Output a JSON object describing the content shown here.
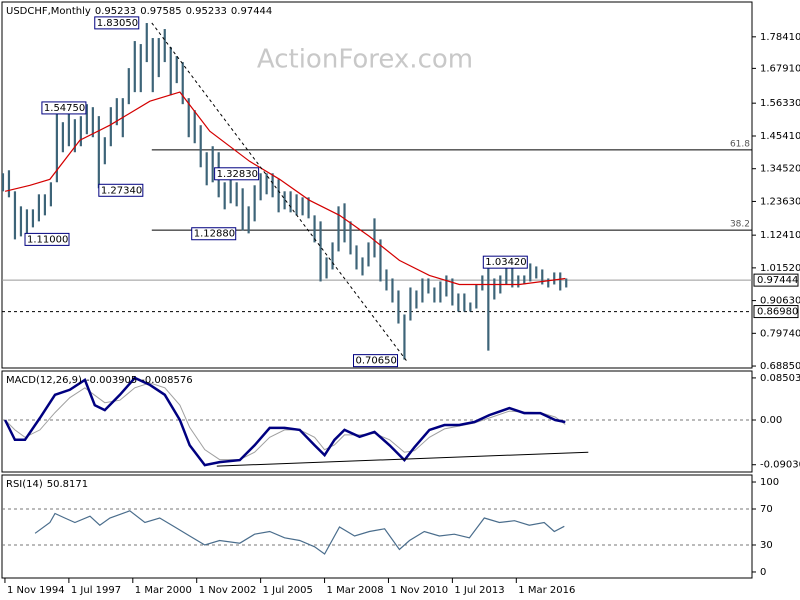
{
  "chart_data": [
    {
      "type": "ohlc",
      "title": "USDCHF,Monthly",
      "header_values": [
        0.95233,
        0.97585,
        0.95233,
        0.97444
      ],
      "watermark": "ActionForex.com",
      "xlim": [
        1994.71,
        2026.0
      ],
      "ylim": [
        0.682,
        1.9
      ],
      "yticks": [
        {
          "value": 1.7841,
          "label": "1.78410"
        },
        {
          "value": 1.6791,
          "label": "1.67910"
        },
        {
          "value": 1.5633,
          "label": "1.56330"
        },
        {
          "value": 1.4541,
          "label": "1.45410"
        },
        {
          "value": 1.3452,
          "label": "1.34520"
        },
        {
          "value": 1.2363,
          "label": "1.23630"
        },
        {
          "value": 1.1241,
          "label": "1.12410"
        },
        {
          "value": 1.0152,
          "label": "1.01520"
        },
        {
          "value": 0.9063,
          "label": "0.90630"
        },
        {
          "value": 0.7974,
          "label": "0.79740"
        },
        {
          "value": 0.6885,
          "label": "0.68850"
        }
      ],
      "color": "#3d6478",
      "x": [
        1994.75,
        1995,
        1995.25,
        1995.5,
        1995.75,
        1996,
        1996.25,
        1996.5,
        1996.75,
        1997,
        1997.25,
        1997.5,
        1997.75,
        1998,
        1998.25,
        1998.5,
        1998.75,
        1999,
        1999.25,
        1999.5,
        1999.75,
        2000,
        2000.25,
        2000.5,
        2000.75,
        2001,
        2001.25,
        2001.5,
        2001.75,
        2002,
        2002.25,
        2002.5,
        2002.75,
        2003,
        2003.25,
        2003.5,
        2003.75,
        2004,
        2004.25,
        2004.5,
        2004.75,
        2005,
        2005.25,
        2005.5,
        2005.75,
        2006,
        2006.25,
        2006.5,
        2006.75,
        2007,
        2007.25,
        2007.5,
        2007.75,
        2008,
        2008.25,
        2008.5,
        2008.75,
        2009,
        2009.25,
        2009.5,
        2009.75,
        2010,
        2010.25,
        2010.5,
        2010.75,
        2011,
        2011.25,
        2011.5,
        2011.75,
        2012,
        2012.25,
        2012.5,
        2012.75,
        2013,
        2013.25,
        2013.5,
        2013.75,
        2014,
        2014.25,
        2014.5,
        2014.75,
        2015,
        2015.25,
        2015.5,
        2015.75,
        2016,
        2016.25,
        2016.5,
        2016.75,
        2017,
        2017.25,
        2017.5,
        2017.75,
        2018,
        2018.25
      ],
      "high": [
        1.33,
        1.34,
        1.27,
        1.22,
        1.21,
        1.21,
        1.26,
        1.26,
        1.3,
        1.55,
        1.5,
        1.53,
        1.51,
        1.52,
        1.56,
        1.55,
        1.52,
        1.45,
        1.55,
        1.58,
        1.58,
        1.68,
        1.77,
        1.76,
        1.83,
        1.78,
        1.78,
        1.81,
        1.75,
        1.72,
        1.7,
        1.58,
        1.54,
        1.49,
        1.4,
        1.42,
        1.4,
        1.3,
        1.32,
        1.3,
        1.28,
        1.22,
        1.29,
        1.33,
        1.33,
        1.33,
        1.31,
        1.27,
        1.27,
        1.26,
        1.25,
        1.25,
        1.19,
        1.17,
        1.05,
        1.1,
        1.22,
        1.23,
        1.17,
        1.09,
        1.05,
        1.1,
        1.18,
        1.11,
        1.01,
        0.98,
        0.94,
        0.86,
        0.95,
        0.94,
        0.98,
        0.98,
        0.95,
        0.97,
        0.99,
        0.98,
        0.93,
        0.93,
        0.9,
        0.96,
        0.99,
        1.03,
        0.98,
        0.99,
        1.02,
        1.02,
        0.99,
        0.99,
        1.03,
        1.02,
        1.01,
        0.98,
        1.0,
        1.0,
        0.98
      ],
      "low": [
        1.27,
        1.25,
        1.11,
        1.12,
        1.13,
        1.15,
        1.17,
        1.19,
        1.22,
        1.3,
        1.4,
        1.42,
        1.4,
        1.42,
        1.46,
        1.45,
        1.28,
        1.36,
        1.42,
        1.49,
        1.45,
        1.56,
        1.6,
        1.6,
        1.7,
        1.6,
        1.65,
        1.7,
        1.59,
        1.63,
        1.56,
        1.45,
        1.43,
        1.35,
        1.29,
        1.3,
        1.25,
        1.21,
        1.23,
        1.22,
        1.14,
        1.13,
        1.17,
        1.24,
        1.26,
        1.25,
        1.2,
        1.21,
        1.2,
        1.19,
        1.19,
        1.18,
        1.1,
        0.97,
        0.98,
        1.01,
        1.07,
        1.1,
        1.06,
        1.01,
        0.99,
        1.02,
        1.05,
        0.97,
        0.94,
        0.9,
        0.83,
        0.71,
        0.84,
        0.88,
        0.9,
        0.93,
        0.9,
        0.9,
        0.92,
        0.89,
        0.87,
        0.87,
        0.87,
        0.88,
        0.94,
        0.74,
        0.91,
        0.93,
        0.96,
        0.95,
        0.95,
        0.96,
        0.97,
        0.98,
        0.96,
        0.95,
        0.96,
        0.94,
        0.95
      ],
      "ma": {
        "color": "#d40000",
        "x": [
          1994.84,
          1995.88,
          1996.71,
          1997.96,
          1999.21,
          2000.88,
          2002.13,
          2003.38,
          2005.04,
          2006.29,
          2007.54,
          2008.79,
          2010.04,
          2011.29,
          2012.54,
          2013.79,
          2015.04,
          2016.29,
          2018.21
        ],
        "values": [
          1.27,
          1.29,
          1.31,
          1.44,
          1.49,
          1.57,
          1.6,
          1.47,
          1.37,
          1.31,
          1.24,
          1.19,
          1.12,
          1.04,
          0.99,
          0.96,
          0.96,
          0.96,
          0.98
        ]
      },
      "levels": [
        {
          "value": 0.8698,
          "label": "0.86980"
        }
      ],
      "fib_levels": [
        {
          "value": 1.408,
          "label": "61.8"
        },
        {
          "value": 1.141,
          "label": "38.2"
        }
      ],
      "trend_line": {
        "x": [
          2000.96,
          2011.58
        ],
        "values": [
          1.8305,
          0.7065
        ]
      },
      "annotations": [
        {
          "x": 1998.58,
          "value": 1.8305,
          "label": "1.83050"
        },
        {
          "x": 1996.375,
          "value": 1.5475,
          "label": "1.54750"
        },
        {
          "x": 1998.75,
          "value": 1.2734,
          "label": "1.27340"
        },
        {
          "x": 1995.67,
          "value": 1.11,
          "label": "1.11000"
        },
        {
          "x": 2003.58,
          "value": 1.3283,
          "label": "1.32830"
        },
        {
          "x": 2002.625,
          "value": 1.1288,
          "label": "1.12880"
        },
        {
          "x": 2009.375,
          "value": 0.7065,
          "label": "0.70650"
        },
        {
          "x": 2014.79,
          "value": 1.0342,
          "label": "1.03420"
        }
      ]
    },
    {
      "type": "macd",
      "title": "MACD(12,26,9)",
      "header_values": [
        -0.003905,
        -0.008576
      ],
      "xlim": [
        1994.71,
        2026.0
      ],
      "ylim": [
        -0.105,
        0.099
      ],
      "yticks": [
        0.085032,
        {
          "value": 0,
          "label": "0.00"
        },
        -0.090302
      ],
      "levels": [
        0
      ],
      "color": "#000080",
      "x": [
        1994.84,
        1995.25,
        1995.67,
        1996.29,
        1996.92,
        1997.54,
        1998.17,
        1998.58,
        1999.0,
        1999.63,
        2000.25,
        2000.88,
        2001.5,
        2002.13,
        2002.54,
        2003.17,
        2003.79,
        2004.63,
        2005.25,
        2005.88,
        2006.5,
        2007.13,
        2007.75,
        2008.17,
        2008.58,
        2009.0,
        2009.63,
        2010.25,
        2010.88,
        2011.5,
        2011.92,
        2012.54,
        2013.17,
        2013.79,
        2014.42,
        2015.04,
        2015.88,
        2016.5,
        2017.17,
        2017.79,
        2018.21
      ],
      "values": [
        0,
        -0.04,
        -0.04,
        0.004,
        0.051,
        0.061,
        0.081,
        0.03,
        0.02,
        0.051,
        0.085,
        0.071,
        0.051,
        0,
        -0.051,
        -0.091,
        -0.085,
        -0.081,
        -0.051,
        -0.016,
        -0.016,
        -0.02,
        -0.051,
        -0.071,
        -0.04,
        -0.02,
        -0.034,
        -0.024,
        -0.051,
        -0.081,
        -0.055,
        -0.02,
        -0.01,
        -0.01,
        -0.004,
        0.01,
        0.024,
        0.014,
        0.014,
        0,
        -0.004
      ],
      "signal": {
        "color": "#a0a0a0",
        "values": [
          0,
          -0.02,
          -0.035,
          -0.02,
          0.015,
          0.045,
          0.065,
          0.05,
          0.035,
          0.04,
          0.065,
          0.075,
          0.065,
          0.03,
          -0.015,
          -0.06,
          -0.08,
          -0.08,
          -0.065,
          -0.035,
          -0.02,
          -0.02,
          -0.035,
          -0.06,
          -0.05,
          -0.03,
          -0.03,
          -0.027,
          -0.04,
          -0.065,
          -0.062,
          -0.035,
          -0.018,
          -0.012,
          -0.006,
          0.004,
          0.018,
          0.016,
          0.015,
          0.006,
          -0.009
        ]
      },
      "trend_line": {
        "x": [
          2003.67,
          2019.17
        ],
        "values": [
          -0.093,
          -0.065
        ]
      }
    },
    {
      "type": "rsi",
      "title": "RSI(14)",
      "header_values": [
        50.8171
      ],
      "xlim": [
        1994.71,
        2026.0
      ],
      "ylim": [
        -6.7,
        107.8
      ],
      "yticks": [
        100,
        70,
        30,
        0
      ],
      "levels": [
        70,
        30
      ],
      "color": "#4a6d8c",
      "x": [
        1996.09,
        1996.71,
        1996.92,
        1997.33,
        1997.75,
        1998.38,
        1998.79,
        1999.21,
        2000.04,
        2000.67,
        2001.29,
        2001.92,
        2002.54,
        2003.17,
        2003.79,
        2004.63,
        2005.25,
        2005.88,
        2006.5,
        2007.13,
        2007.75,
        2008.17,
        2008.79,
        2009.42,
        2010.04,
        2010.67,
        2011.29,
        2011.71,
        2012.33,
        2012.96,
        2013.58,
        2014.21,
        2014.83,
        2015.46,
        2016.09,
        2016.71,
        2017.33,
        2017.75,
        2018.17
      ],
      "values": [
        43,
        55,
        65,
        60,
        55,
        62,
        52,
        60,
        68,
        55,
        60,
        50,
        40,
        30,
        35,
        32,
        42,
        45,
        38,
        35,
        28,
        20,
        50,
        40,
        45,
        48,
        25,
        35,
        45,
        40,
        42,
        38,
        60,
        55,
        57,
        52,
        55,
        45,
        50.8
      ],
      "xticks": [
        {
          "value": 1994.833,
          "label": "1 Nov 1994"
        },
        {
          "value": 1997.5,
          "label": "1 Jul 1997"
        },
        {
          "value": 2000.167,
          "label": "1 Mar 2000"
        },
        {
          "value": 2002.833,
          "label": "1 Nov 2002"
        },
        {
          "value": 2005.5,
          "label": "1 Jul 2005"
        },
        {
          "value": 2008.167,
          "label": "1 Mar 2008"
        },
        {
          "value": 2010.833,
          "label": "1 Nov 2010"
        },
        {
          "value": 2013.5,
          "label": "1 Jul 2013"
        },
        {
          "value": 2016.167,
          "label": "1 Mar 2016"
        }
      ]
    }
  ]
}
